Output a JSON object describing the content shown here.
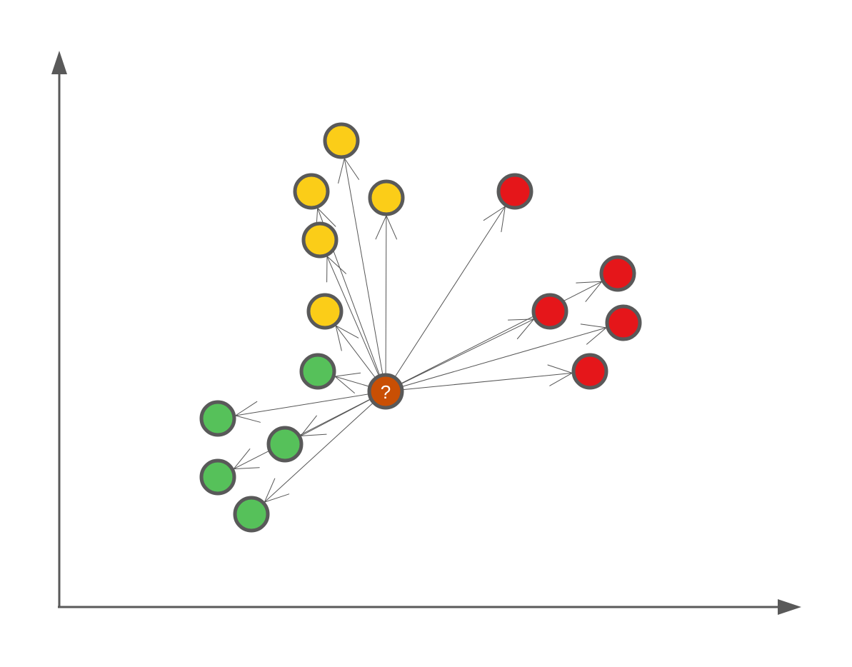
{
  "colors": {
    "green": "#56c15a",
    "yellow": "#fbcd18",
    "red": "#e5161a",
    "query": "#c94f04",
    "stroke": "#595959",
    "arrow": "#555555",
    "axis": "#595959"
  },
  "diagram": {
    "axes": {
      "x_arrow": true,
      "y_arrow": true
    },
    "query_point": {
      "label": "?",
      "color": "query"
    },
    "points": [
      {
        "id": "y1",
        "cls": "yellow"
      },
      {
        "id": "y2",
        "cls": "yellow"
      },
      {
        "id": "y3",
        "cls": "yellow"
      },
      {
        "id": "y4",
        "cls": "yellow"
      },
      {
        "id": "y5",
        "cls": "yellow"
      },
      {
        "id": "r1",
        "cls": "red"
      },
      {
        "id": "r2",
        "cls": "red"
      },
      {
        "id": "r3",
        "cls": "red"
      },
      {
        "id": "r4",
        "cls": "red"
      },
      {
        "id": "r5",
        "cls": "red"
      },
      {
        "id": "g1",
        "cls": "green"
      },
      {
        "id": "g2",
        "cls": "green"
      },
      {
        "id": "g3",
        "cls": "green"
      },
      {
        "id": "g4",
        "cls": "green"
      },
      {
        "id": "g5",
        "cls": "green"
      }
    ]
  }
}
